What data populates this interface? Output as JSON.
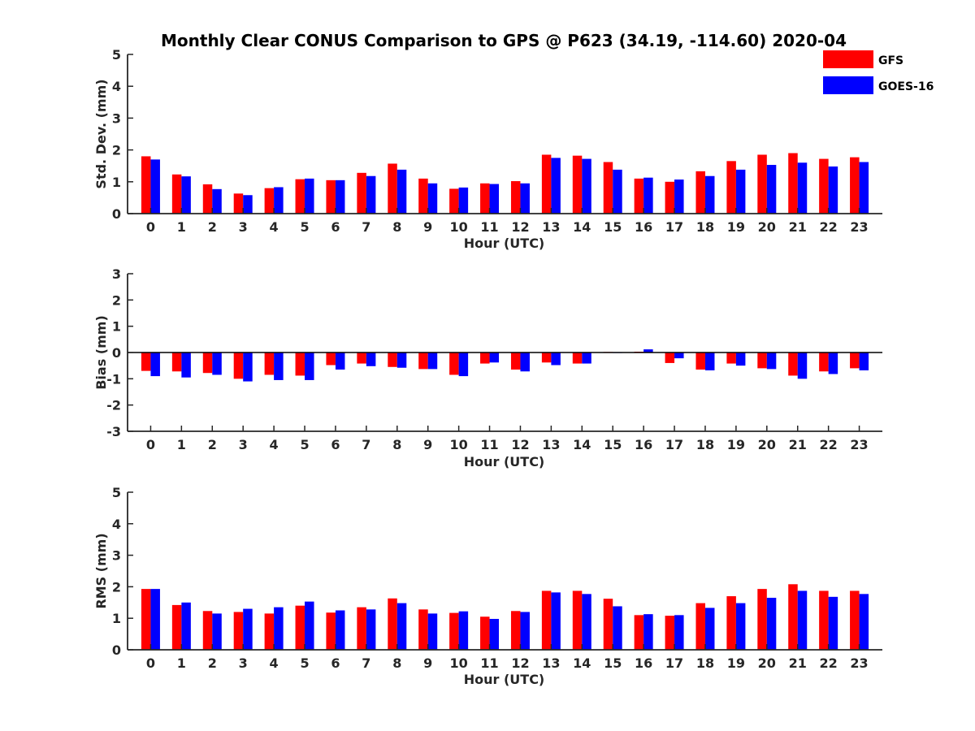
{
  "figure": {
    "title": "Monthly Clear CONUS Comparison to GPS @ P623 (34.19, -114.60) 2020-04"
  },
  "legend": {
    "items": [
      {
        "label": "GFS",
        "color": "#ff0000"
      },
      {
        "label": "GOES-16",
        "color": "#0000ff"
      }
    ],
    "placement": "top-right"
  },
  "chart_data": [
    {
      "type": "bar",
      "title": "Monthly Clear CONUS Comparison to GPS @ P623 (34.19, -114.60) 2020-04",
      "xlabel": "Hour (UTC)",
      "ylabel": "Std. Dev. (mm)",
      "ylim": [
        0,
        5
      ],
      "yticks": [
        0,
        1,
        2,
        3,
        4,
        5
      ],
      "categories": [
        "0",
        "1",
        "2",
        "3",
        "4",
        "5",
        "6",
        "7",
        "8",
        "9",
        "10",
        "11",
        "12",
        "13",
        "14",
        "15",
        "16",
        "17",
        "18",
        "19",
        "20",
        "21",
        "22",
        "23"
      ],
      "series": [
        {
          "name": "GFS",
          "color": "#ff0000",
          "values": [
            1.8,
            1.23,
            0.92,
            0.63,
            0.8,
            1.08,
            1.05,
            1.28,
            1.57,
            1.1,
            0.78,
            0.95,
            1.02,
            1.85,
            1.82,
            1.62,
            1.1,
            1.0,
            1.33,
            1.65,
            1.85,
            1.9,
            1.72,
            1.77
          ]
        },
        {
          "name": "GOES-16",
          "color": "#0000ff",
          "values": [
            1.7,
            1.17,
            0.77,
            0.58,
            0.83,
            1.1,
            1.05,
            1.18,
            1.38,
            0.95,
            0.82,
            0.93,
            0.95,
            1.75,
            1.72,
            1.38,
            1.13,
            1.07,
            1.18,
            1.38,
            1.53,
            1.6,
            1.48,
            1.62
          ]
        }
      ],
      "grid": false
    },
    {
      "type": "bar",
      "xlabel": "Hour (UTC)",
      "ylabel": "Bias (mm)",
      "ylim": [
        -3,
        3
      ],
      "yticks": [
        -3,
        -2,
        -1,
        0,
        1,
        2,
        3
      ],
      "categories": [
        "0",
        "1",
        "2",
        "3",
        "4",
        "5",
        "6",
        "7",
        "8",
        "9",
        "10",
        "11",
        "12",
        "13",
        "14",
        "15",
        "16",
        "17",
        "18",
        "19",
        "20",
        "21",
        "22",
        "23"
      ],
      "series": [
        {
          "name": "GFS",
          "color": "#ff0000",
          "values": [
            -0.7,
            -0.72,
            -0.78,
            -1.0,
            -0.85,
            -0.88,
            -0.48,
            -0.42,
            -0.55,
            -0.63,
            -0.85,
            -0.42,
            -0.65,
            -0.38,
            -0.42,
            0.02,
            0.03,
            -0.4,
            -0.65,
            -0.42,
            -0.6,
            -0.88,
            -0.72,
            -0.6
          ]
        },
        {
          "name": "GOES-16",
          "color": "#0000ff",
          "values": [
            -0.9,
            -0.95,
            -0.85,
            -1.1,
            -1.05,
            -1.05,
            -0.65,
            -0.52,
            -0.58,
            -0.63,
            -0.9,
            -0.38,
            -0.72,
            -0.48,
            -0.42,
            0.0,
            0.12,
            -0.22,
            -0.68,
            -0.5,
            -0.63,
            -1.0,
            -0.82,
            -0.68
          ]
        }
      ],
      "grid": false
    },
    {
      "type": "bar",
      "xlabel": "Hour (UTC)",
      "ylabel": "RMS (mm)",
      "ylim": [
        0,
        5
      ],
      "yticks": [
        0,
        1,
        2,
        3,
        4,
        5
      ],
      "categories": [
        "0",
        "1",
        "2",
        "3",
        "4",
        "5",
        "6",
        "7",
        "8",
        "9",
        "10",
        "11",
        "12",
        "13",
        "14",
        "15",
        "16",
        "17",
        "18",
        "19",
        "20",
        "21",
        "22",
        "23"
      ],
      "series": [
        {
          "name": "GFS",
          "color": "#ff0000",
          "values": [
            1.93,
            1.42,
            1.23,
            1.2,
            1.15,
            1.4,
            1.18,
            1.35,
            1.63,
            1.28,
            1.17,
            1.05,
            1.23,
            1.87,
            1.87,
            1.62,
            1.1,
            1.08,
            1.48,
            1.7,
            1.93,
            2.08,
            1.87,
            1.87
          ]
        },
        {
          "name": "GOES-16",
          "color": "#0000ff",
          "values": [
            1.93,
            1.5,
            1.15,
            1.3,
            1.35,
            1.53,
            1.25,
            1.28,
            1.48,
            1.15,
            1.22,
            0.98,
            1.2,
            1.82,
            1.77,
            1.38,
            1.13,
            1.1,
            1.33,
            1.48,
            1.65,
            1.87,
            1.68,
            1.77
          ]
        }
      ],
      "grid": false
    }
  ]
}
